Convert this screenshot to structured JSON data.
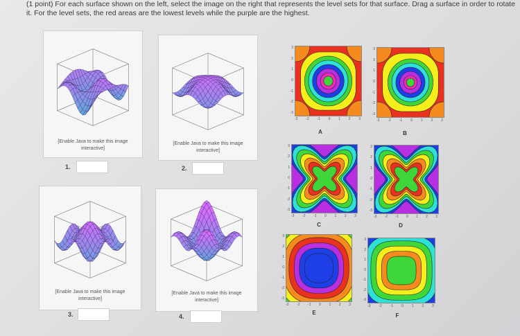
{
  "instructions": "(1 point) For each surface shown on the left, select the image on the right that represents the level sets for that surface. Drag a surface in order to rotate it. For the level sets, the red areas are the lowest levels while the purple are the highest.",
  "surfaces": [
    {
      "caption_line1": "[Enable Java to make this image",
      "caption_line2": "interactive]",
      "number": "1.",
      "value": ""
    },
    {
      "caption_line1": "[Enable Java to make this image",
      "caption_line2": "interactive]",
      "number": "2.",
      "value": ""
    },
    {
      "caption_line1": "[Enable Java to make this image",
      "caption_line2": "interactive]",
      "number": "3.",
      "value": ""
    },
    {
      "caption_line1": "[Enable Java to make this image",
      "caption_line2": "interactive]",
      "number": "4.",
      "value": ""
    }
  ],
  "contours": [
    {
      "label": "A"
    },
    {
      "label": "B"
    },
    {
      "label": "C"
    },
    {
      "label": "D"
    },
    {
      "label": "E"
    },
    {
      "label": "F"
    }
  ],
  "ticks_y": [
    "3",
    "2",
    "1",
    "0",
    "-1",
    "-2",
    "-3"
  ],
  "ticks_x": [
    "-3",
    "-2",
    "-1",
    "0",
    "1",
    "2",
    "3"
  ],
  "colors": {
    "red": "#e8321f",
    "orange": "#f58a1e",
    "yellow": "#f4ee1c",
    "green": "#3fd63a",
    "cyan": "#2ee0d5",
    "blue": "#1e3fe6",
    "purple": "#b72fe0",
    "magenta": "#f02ab8"
  }
}
